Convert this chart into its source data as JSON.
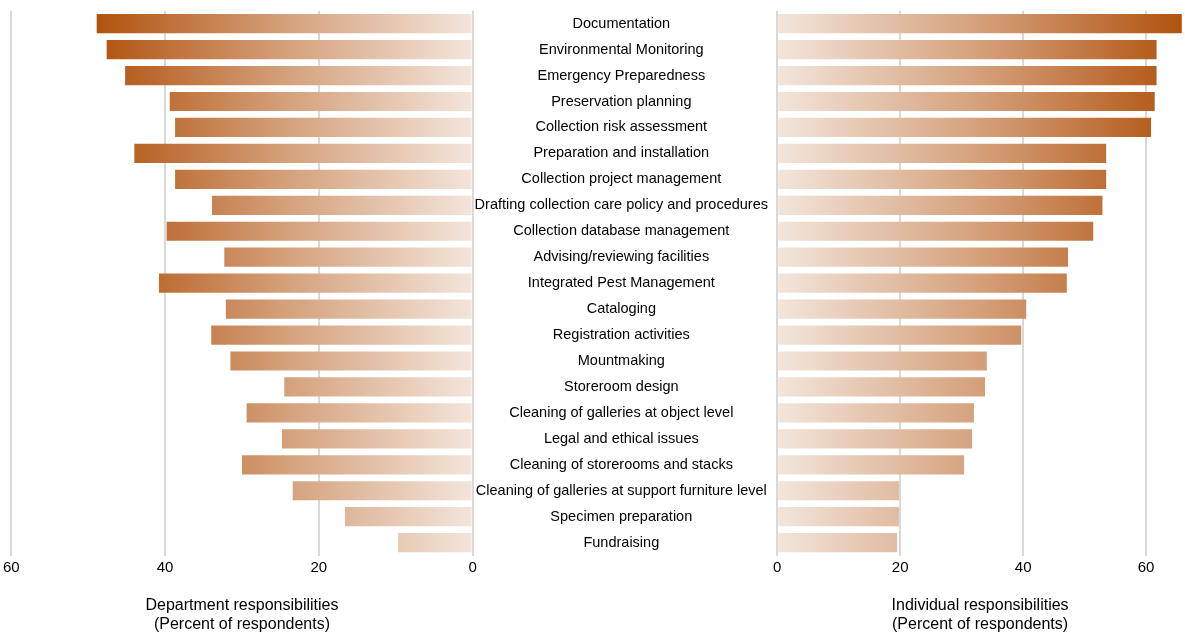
{
  "chart_data": [
    {
      "type": "bar",
      "orientation": "horizontal",
      "categories": [
        "Documentation",
        "Environmental Monitoring",
        "Emergency Preparedness",
        "Preservation planning",
        "Collection risk assessment",
        "Preparation and installation",
        "Collection project management",
        "Drafting collection care policy and procedures",
        "Collection database management",
        "Advising/reviewing facilities",
        "Integrated Pest Management",
        "Cataloging",
        "Registration activities",
        "Mountmaking",
        "Storeroom design",
        "Cleaning of galleries at object level",
        "Legal and ethical issues",
        "Cleaning of storerooms and stacks",
        "Cleaning of galleries at support furniture level",
        "Specimen preparation",
        "Fundraising"
      ],
      "values": [
        48.9,
        47.6,
        45.2,
        39.4,
        38.7,
        44.0,
        38.7,
        33.9,
        39.8,
        32.3,
        40.8,
        32.1,
        34.0,
        31.5,
        24.5,
        29.4,
        24.8,
        30.0,
        23.4,
        16.6,
        9.7
      ],
      "color": "#b1530f",
      "xlim": [
        60,
        0
      ],
      "xticks": [
        60,
        40,
        20,
        0
      ],
      "grid": "x",
      "legend": false,
      "xlabel": "Department responsibilities\n(Percent of respondents)"
    },
    {
      "type": "bar",
      "orientation": "horizontal",
      "categories": [
        null,
        null,
        null,
        null,
        null,
        null,
        null,
        null,
        null,
        null,
        null,
        null,
        null,
        null,
        null,
        null,
        null,
        null,
        null,
        null,
        null
      ],
      "values": [
        65.8,
        61.7,
        61.7,
        61.4,
        60.8,
        53.5,
        53.5,
        52.9,
        51.4,
        47.3,
        47.1,
        40.5,
        39.7,
        34.1,
        33.8,
        32.0,
        31.7,
        30.4,
        19.8,
        19.8,
        19.5
      ],
      "color": "#b1530f",
      "xlim": [
        0,
        66
      ],
      "xticks": [
        0,
        20,
        40,
        60
      ],
      "grid": "x",
      "legend": false,
      "xlabel": "Individual responsibilities\n(Percent of respondents)"
    }
  ]
}
